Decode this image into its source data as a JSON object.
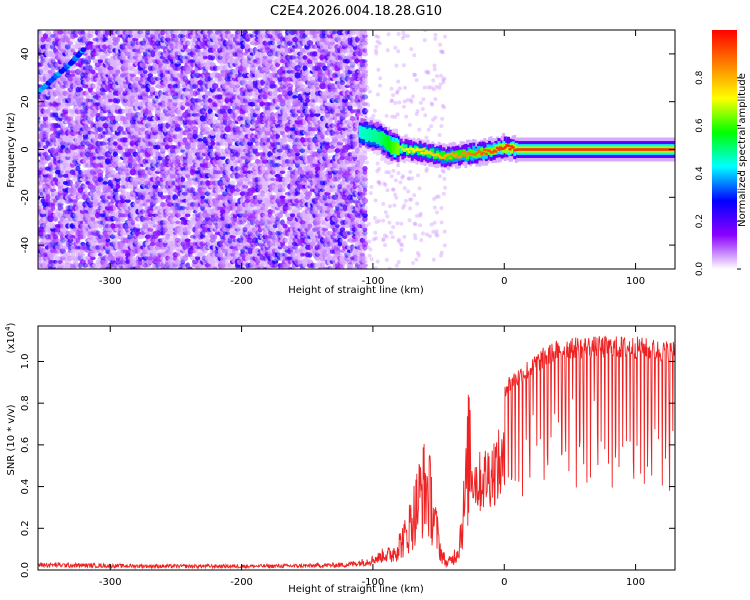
{
  "figure_title": "C2E4.2026.004.18.28.G10",
  "chart_data": [
    {
      "type": "heatmap",
      "id": "spectrogram",
      "title": "C2E4.2026.004.18.28.G10",
      "xlabel": "Height of straight line (km)",
      "ylabel": "Frequency (Hz)",
      "xlim": [
        -355,
        130
      ],
      "ylim": [
        -50,
        50
      ],
      "xticks": [
        -300,
        -200,
        -100,
        0,
        100
      ],
      "yticks": [
        -40,
        -20,
        0,
        20,
        40
      ],
      "colorbar": {
        "label": "Normalized spectral amplitude",
        "range": [
          0.0,
          1.0
        ],
        "ticks": [
          0.0,
          0.2,
          0.4,
          0.6,
          0.8
        ],
        "colormap": [
          "#ffffff",
          "#8a00ff",
          "#0000ff",
          "#00ffff",
          "#00ff00",
          "#ffff00",
          "#ff8000",
          "#ff0000"
        ]
      },
      "noise_region": {
        "x_start": -355,
        "x_end": -105,
        "amplitude": 0.15
      },
      "diagonal_feature": [
        [
          -355,
          24
        ],
        [
          -330,
          36
        ],
        [
          -320,
          42
        ]
      ],
      "signal_track": [
        {
          "x": -110,
          "y": 7,
          "amplitude": 0.45
        },
        {
          "x": -95,
          "y": 5,
          "amplitude": 0.5
        },
        {
          "x": -85,
          "y": 1,
          "amplitude": 0.6
        },
        {
          "x": -75,
          "y": 0,
          "amplitude": 0.7
        },
        {
          "x": -60,
          "y": -1,
          "amplitude": 0.75
        },
        {
          "x": -45,
          "y": -3,
          "amplitude": 0.8
        },
        {
          "x": -30,
          "y": -2,
          "amplitude": 0.85
        },
        {
          "x": -15,
          "y": -1,
          "amplitude": 0.9
        },
        {
          "x": 0,
          "y": 1,
          "amplitude": 0.95
        },
        {
          "x": 10,
          "y": 0,
          "amplitude": 0.95
        },
        {
          "x": 130,
          "y": 0,
          "amplitude": 0.95
        }
      ]
    },
    {
      "type": "line",
      "id": "snr",
      "xlabel": "Height of straight line (km)",
      "ylabel": "SNR (10 * v/v)",
      "y_multiplier_label": "(x10",
      "y_multiplier_exp": "4",
      "y_multiplier_close": ")",
      "xlim": [
        -355,
        130
      ],
      "ylim": [
        0.0,
        1.17
      ],
      "xticks": [
        -300,
        -200,
        -100,
        0,
        100
      ],
      "yticks": [
        0.0,
        0.2,
        0.4,
        0.6,
        0.8,
        1.0
      ],
      "series": [
        {
          "name": "SNR",
          "color": "#ee2222",
          "x": [
            -355,
            -300,
            -250,
            -200,
            -150,
            -120,
            -105,
            -95,
            -85,
            -75,
            -68,
            -64,
            -60,
            -56,
            -52,
            -48,
            -44,
            -40,
            -35,
            -30,
            -27,
            -24,
            -20,
            -15,
            -10,
            -5,
            0,
            10,
            20,
            30,
            40,
            50,
            60,
            70,
            80,
            90,
            100,
            110,
            120,
            130
          ],
          "values": [
            0.025,
            0.02,
            0.018,
            0.018,
            0.02,
            0.025,
            0.04,
            0.06,
            0.1,
            0.2,
            0.35,
            0.45,
            0.5,
            0.42,
            0.25,
            0.1,
            0.04,
            0.06,
            0.12,
            0.4,
            0.7,
            0.85,
            0.75,
            0.8,
            0.85,
            0.9,
            0.9,
            0.95,
            1.0,
            1.05,
            1.08,
            1.1,
            1.1,
            1.1,
            1.1,
            1.1,
            1.1,
            1.09,
            1.08,
            1.08
          ]
        }
      ]
    }
  ]
}
